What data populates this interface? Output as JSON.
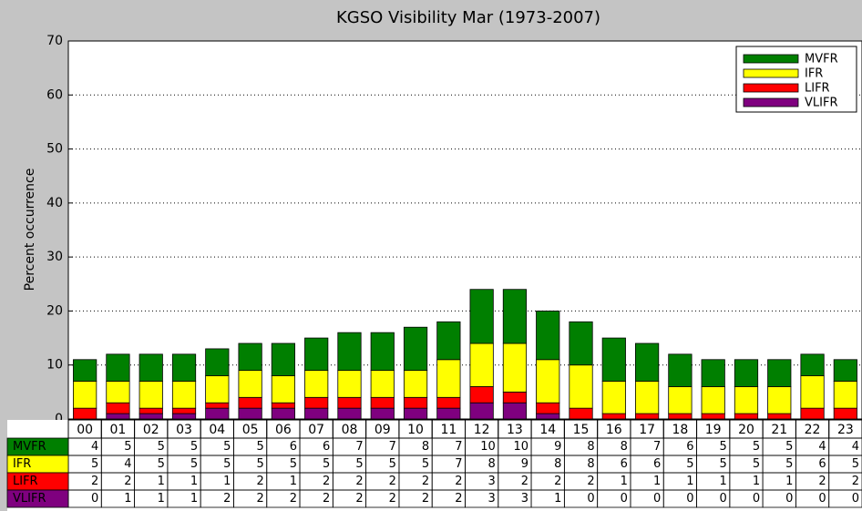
{
  "chart_data": {
    "type": "stacked_bar",
    "title": "KGSO Visibility Mar (1973-2007)",
    "y_label": "Percent occurrence",
    "categories": [
      "00",
      "01",
      "02",
      "03",
      "04",
      "05",
      "06",
      "07",
      "08",
      "09",
      "10",
      "11",
      "12",
      "13",
      "14",
      "15",
      "16",
      "17",
      "18",
      "19",
      "20",
      "21",
      "22",
      "23"
    ],
    "series": [
      {
        "name": "MVFR",
        "color": "#007f00",
        "values": [
          4,
          5,
          5,
          5,
          5,
          5,
          6,
          6,
          7,
          7,
          8,
          7,
          10,
          10,
          9,
          8,
          8,
          7,
          6,
          5,
          5,
          5,
          4,
          4
        ]
      },
      {
        "name": "IFR",
        "color": "#ffff00",
        "values": [
          5,
          4,
          5,
          5,
          5,
          5,
          5,
          5,
          5,
          5,
          5,
          7,
          8,
          9,
          8,
          8,
          6,
          6,
          5,
          5,
          5,
          5,
          6,
          5
        ]
      },
      {
        "name": "LIFR",
        "color": "#ff0000",
        "values": [
          2,
          2,
          1,
          1,
          1,
          2,
          1,
          2,
          2,
          2,
          2,
          2,
          3,
          2,
          2,
          2,
          1,
          1,
          1,
          1,
          1,
          1,
          2,
          2
        ]
      },
      {
        "name": "VLIFR",
        "color": "#7f007f",
        "values": [
          0,
          1,
          1,
          1,
          2,
          2,
          2,
          2,
          2,
          2,
          2,
          2,
          3,
          3,
          1,
          0,
          0,
          0,
          0,
          0,
          0,
          0,
          0,
          0
        ]
      }
    ],
    "ylim": [
      0,
      70
    ],
    "yticks": [
      0,
      10,
      20,
      30,
      40,
      50,
      60,
      70
    ],
    "grid": true,
    "legend": "upper right"
  }
}
